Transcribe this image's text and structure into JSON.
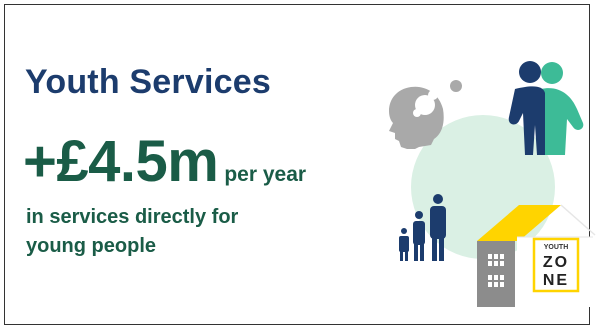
{
  "title": "Youth Services",
  "amount": "+£4.5m",
  "amount_suffix": "per year",
  "description_lines": [
    "in services directly for",
    "young people"
  ],
  "zone_label_top": "YOUTH",
  "zone_label_main_1": "ZO",
  "zone_label_main_2": "NE",
  "colors": {
    "navy": "#1c3c6d",
    "green_text": "#1a5c47",
    "teal": "#3dbb97",
    "mint_circle": "#daf0e4",
    "grey_head": "#a9a9a9",
    "building_grey": "#8c8c8c",
    "roof_yellow": "#ffd400"
  },
  "icons": [
    "head-thinking-icon",
    "two-people-icon",
    "family-figures-icon",
    "youth-zone-building-icon"
  ]
}
